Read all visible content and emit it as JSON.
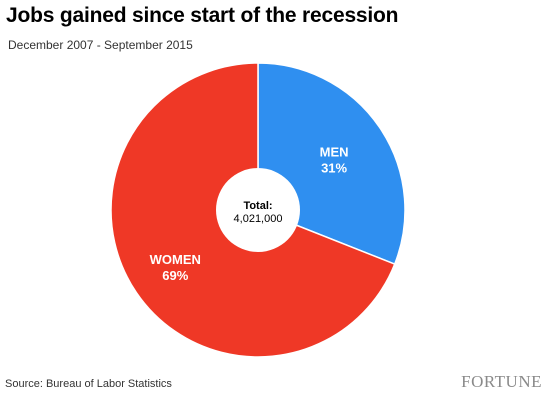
{
  "chart_data": {
    "type": "pie",
    "title": "Jobs gained since start of the recession",
    "subtitle": "December 2007 - September 2015",
    "slices": [
      {
        "label": "MEN",
        "value": 31,
        "value_label": "31%",
        "color": "#2f8ff0"
      },
      {
        "label": "WOMEN",
        "value": 69,
        "value_label": "69%",
        "color": "#ef3826"
      }
    ],
    "center": {
      "title": "Total:",
      "value": "4,021,000"
    },
    "legend": "none"
  },
  "footer": {
    "source": "Source: Bureau of Labor Statistics",
    "logo": "FORTUNE"
  }
}
